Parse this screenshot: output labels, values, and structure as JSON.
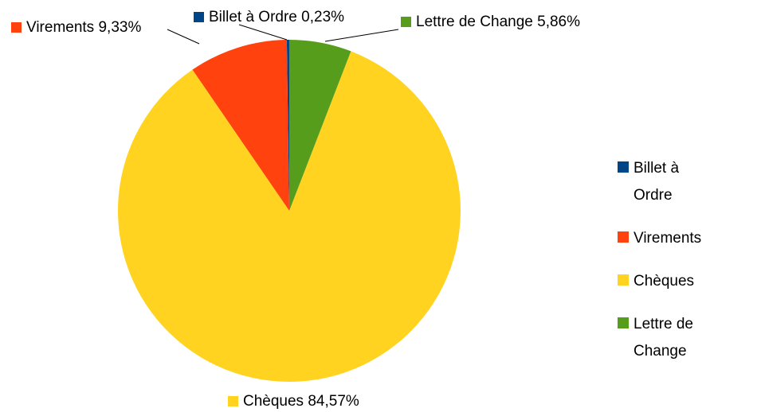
{
  "chart_data": {
    "type": "pie",
    "categories": [
      "Billet à Ordre",
      "Virements",
      "Chèques",
      "Lettre de Change"
    ],
    "values": [
      0.23,
      9.33,
      84.57,
      5.86
    ],
    "value_labels": [
      "0,23%",
      "9,33%",
      "84,57%",
      "5,86%"
    ],
    "colors": [
      "#004586",
      "#ff420e",
      "#ffd320",
      "#579d1c"
    ],
    "legend": "right"
  }
}
